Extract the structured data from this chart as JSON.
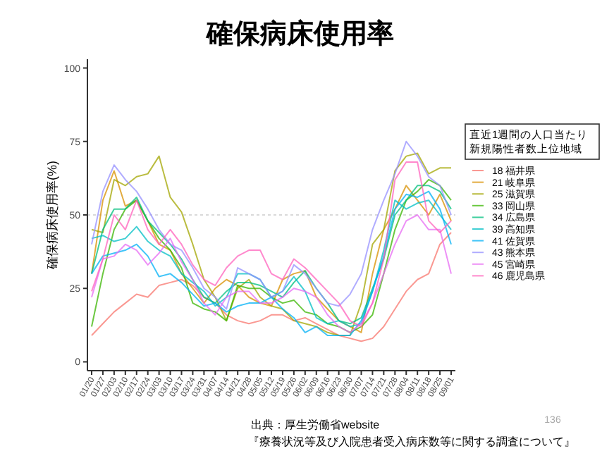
{
  "chart_data": {
    "type": "line",
    "title": "確保病床使用率",
    "ylabel": "確保病床使用率(%)",
    "legend_title": "直近1週間の人口当たり新規陽性者数上位地域",
    "categories": [
      "01/20",
      "01/27",
      "02/03",
      "02/10",
      "02/17",
      "02/24",
      "03/03",
      "03/10",
      "03/17",
      "03/24",
      "03/31",
      "04/07",
      "04/14",
      "04/21",
      "04/28",
      "05/05",
      "05/12",
      "05/19",
      "05/26",
      "06/02",
      "06/09",
      "06/16",
      "06/23",
      "06/30",
      "07/07",
      "07/14",
      "07/21",
      "07/28",
      "08/04",
      "08/11",
      "08/18",
      "08/25",
      "09/01"
    ],
    "ylim": [
      -3,
      103
    ],
    "yticks": [
      0,
      25,
      50,
      75,
      100
    ],
    "grid": false,
    "legend": "right",
    "marker": "none",
    "line_style": "solid",
    "ref_lines": [
      {
        "axis": "y",
        "value": 50,
        "color": "#d9d9d9",
        "line_style": "dotted"
      }
    ],
    "series": [
      {
        "name": "18 福井県",
        "color": "#f8766d",
        "values": [
          9,
          13,
          17,
          20,
          23,
          22,
          26,
          27,
          28,
          26,
          22,
          20,
          16,
          14,
          13,
          14,
          16,
          16,
          14,
          15,
          13,
          11,
          9,
          8,
          7,
          8,
          12,
          18,
          24,
          28,
          30,
          40,
          44
        ]
      },
      {
        "name": "21 岐阜県",
        "color": "#d89000",
        "values": [
          30,
          55,
          65,
          53,
          55,
          48,
          40,
          38,
          30,
          25,
          20,
          25,
          28,
          26,
          22,
          20,
          19,
          28,
          30,
          31,
          22,
          18,
          14,
          12,
          10,
          30,
          45,
          52,
          60,
          55,
          50,
          57,
          48
        ]
      },
      {
        "name": "25 滋賀県",
        "color": "#a3a500",
        "values": [
          45,
          44,
          62,
          60,
          63,
          64,
          70,
          56,
          51,
          40,
          28,
          22,
          14,
          25,
          28,
          22,
          19,
          18,
          14,
          13,
          12,
          10,
          9,
          9,
          20,
          40,
          45,
          65,
          70,
          71,
          64,
          66,
          66
        ]
      },
      {
        "name": "33 岡山県",
        "color": "#39b600",
        "values": [
          12,
          30,
          45,
          52,
          55,
          48,
          42,
          38,
          32,
          20,
          18,
          17,
          14,
          26,
          25,
          25,
          22,
          20,
          21,
          17,
          16,
          13,
          12,
          10,
          12,
          16,
          30,
          45,
          55,
          58,
          62,
          60,
          55
        ]
      },
      {
        "name": "34 広島県",
        "color": "#00bf7d",
        "values": [
          30,
          45,
          52,
          52,
          56,
          48,
          44,
          40,
          35,
          28,
          22,
          20,
          24,
          27,
          27,
          26,
          24,
          22,
          27,
          31,
          25,
          20,
          14,
          13,
          15,
          25,
          35,
          50,
          55,
          60,
          60,
          58,
          52
        ]
      },
      {
        "name": "39 高知県",
        "color": "#00bfc4",
        "values": [
          42,
          43,
          41,
          42,
          46,
          41,
          38,
          36,
          30,
          27,
          24,
          19,
          22,
          30,
          30,
          28,
          22,
          24,
          29,
          24,
          15,
          13,
          14,
          12,
          13,
          24,
          38,
          55,
          52,
          54,
          55,
          50,
          45
        ]
      },
      {
        "name": "41 佐賀県",
        "color": "#00b0f6",
        "values": [
          30,
          36,
          37,
          38,
          40,
          36,
          29,
          30,
          27,
          23,
          19,
          20,
          17,
          19,
          20,
          20,
          22,
          18,
          15,
          10,
          12,
          9,
          9,
          9,
          14,
          24,
          36,
          52,
          57,
          56,
          58,
          52,
          40
        ]
      },
      {
        "name": "43 熊本県",
        "color": "#9590ff",
        "values": [
          40,
          58,
          67,
          62,
          58,
          52,
          45,
          40,
          38,
          32,
          25,
          22,
          18,
          32,
          30,
          28,
          22,
          24,
          33,
          30,
          25,
          20,
          19,
          23,
          30,
          45,
          55,
          64,
          75,
          70,
          63,
          60,
          50
        ]
      },
      {
        "name": "45 宮崎県",
        "color": "#e76bf3",
        "values": [
          22,
          35,
          36,
          40,
          38,
          33,
          37,
          42,
          34,
          28,
          20,
          16,
          22,
          24,
          24,
          20,
          20,
          22,
          25,
          24,
          22,
          16,
          12,
          10,
          13,
          20,
          30,
          40,
          48,
          50,
          45,
          45,
          30
        ]
      },
      {
        "name": "46 鹿児島県",
        "color": "#ff62bc",
        "values": [
          24,
          35,
          50,
          45,
          55,
          45,
          40,
          45,
          40,
          33,
          28,
          26,
          32,
          36,
          38,
          38,
          30,
          28,
          35,
          32,
          28,
          24,
          20,
          14,
          12,
          20,
          35,
          62,
          68,
          68,
          48,
          44,
          48
        ]
      }
    ],
    "annotations": [
      "出典：厚生労働省website",
      "『療養状況等及び入院患者受入病床数等に関する調査について』",
      "136"
    ]
  }
}
